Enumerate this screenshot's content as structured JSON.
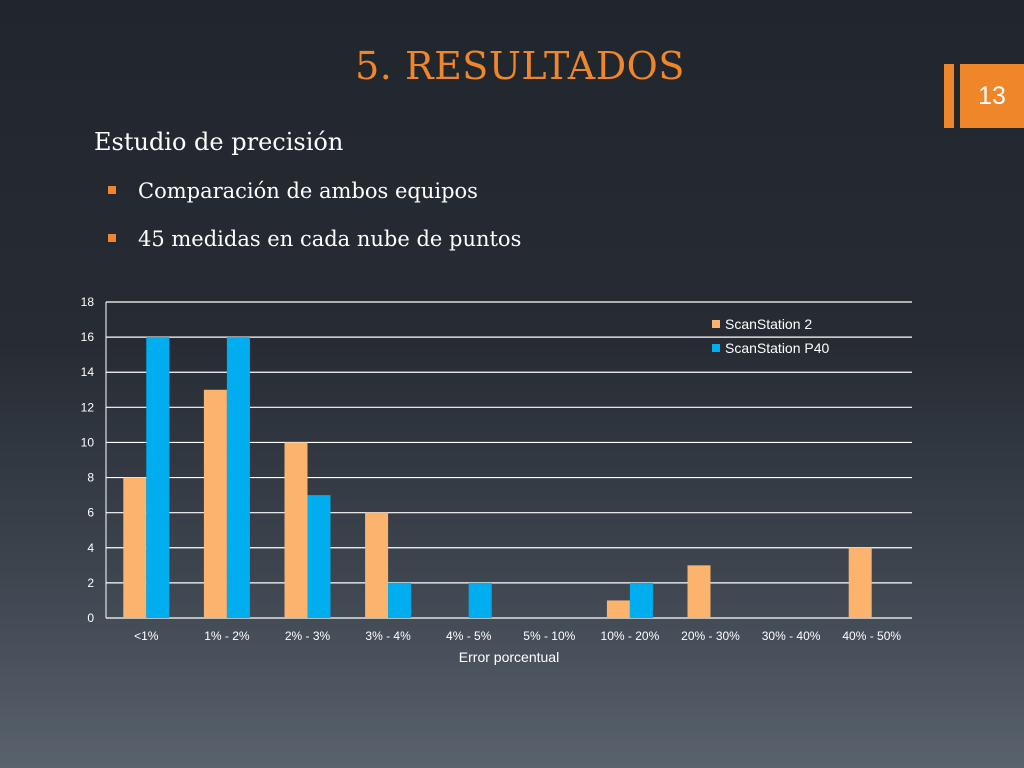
{
  "slide": {
    "title": "5. RESULTADOS",
    "page_number": "13",
    "subtitle": "Estudio de precisión",
    "bullets": [
      {
        "text": "Comparación de ambos equipos"
      },
      {
        "text": "45 medidas en cada nube de puntos"
      }
    ],
    "colors": {
      "accent": "#f0862a",
      "text": "#ffffff"
    }
  },
  "chart_data": {
    "type": "bar",
    "title": "",
    "xlabel": "Error porcentual",
    "ylabel": "",
    "categories": [
      "<1%",
      "1% - 2%",
      "2% - 3%",
      "3% - 4%",
      "4% - 5%",
      "5% - 10%",
      "10% - 20%",
      "20% - 30%",
      "30% - 40%",
      "40% - 50%"
    ],
    "series": [
      {
        "name": "ScanStation 2",
        "color": "#fbb36e",
        "values": [
          8,
          13,
          10,
          6,
          0,
          0,
          1,
          3,
          0,
          4
        ]
      },
      {
        "name": "ScanStation P40",
        "color": "#00aeef",
        "values": [
          16,
          16,
          7,
          2,
          2,
          0,
          2,
          0,
          0,
          0
        ]
      }
    ],
    "ylim": [
      0,
      18
    ],
    "yticks": [
      0,
      2,
      4,
      6,
      8,
      10,
      12,
      14,
      16,
      18
    ],
    "grid": true,
    "legend": "top-right"
  }
}
